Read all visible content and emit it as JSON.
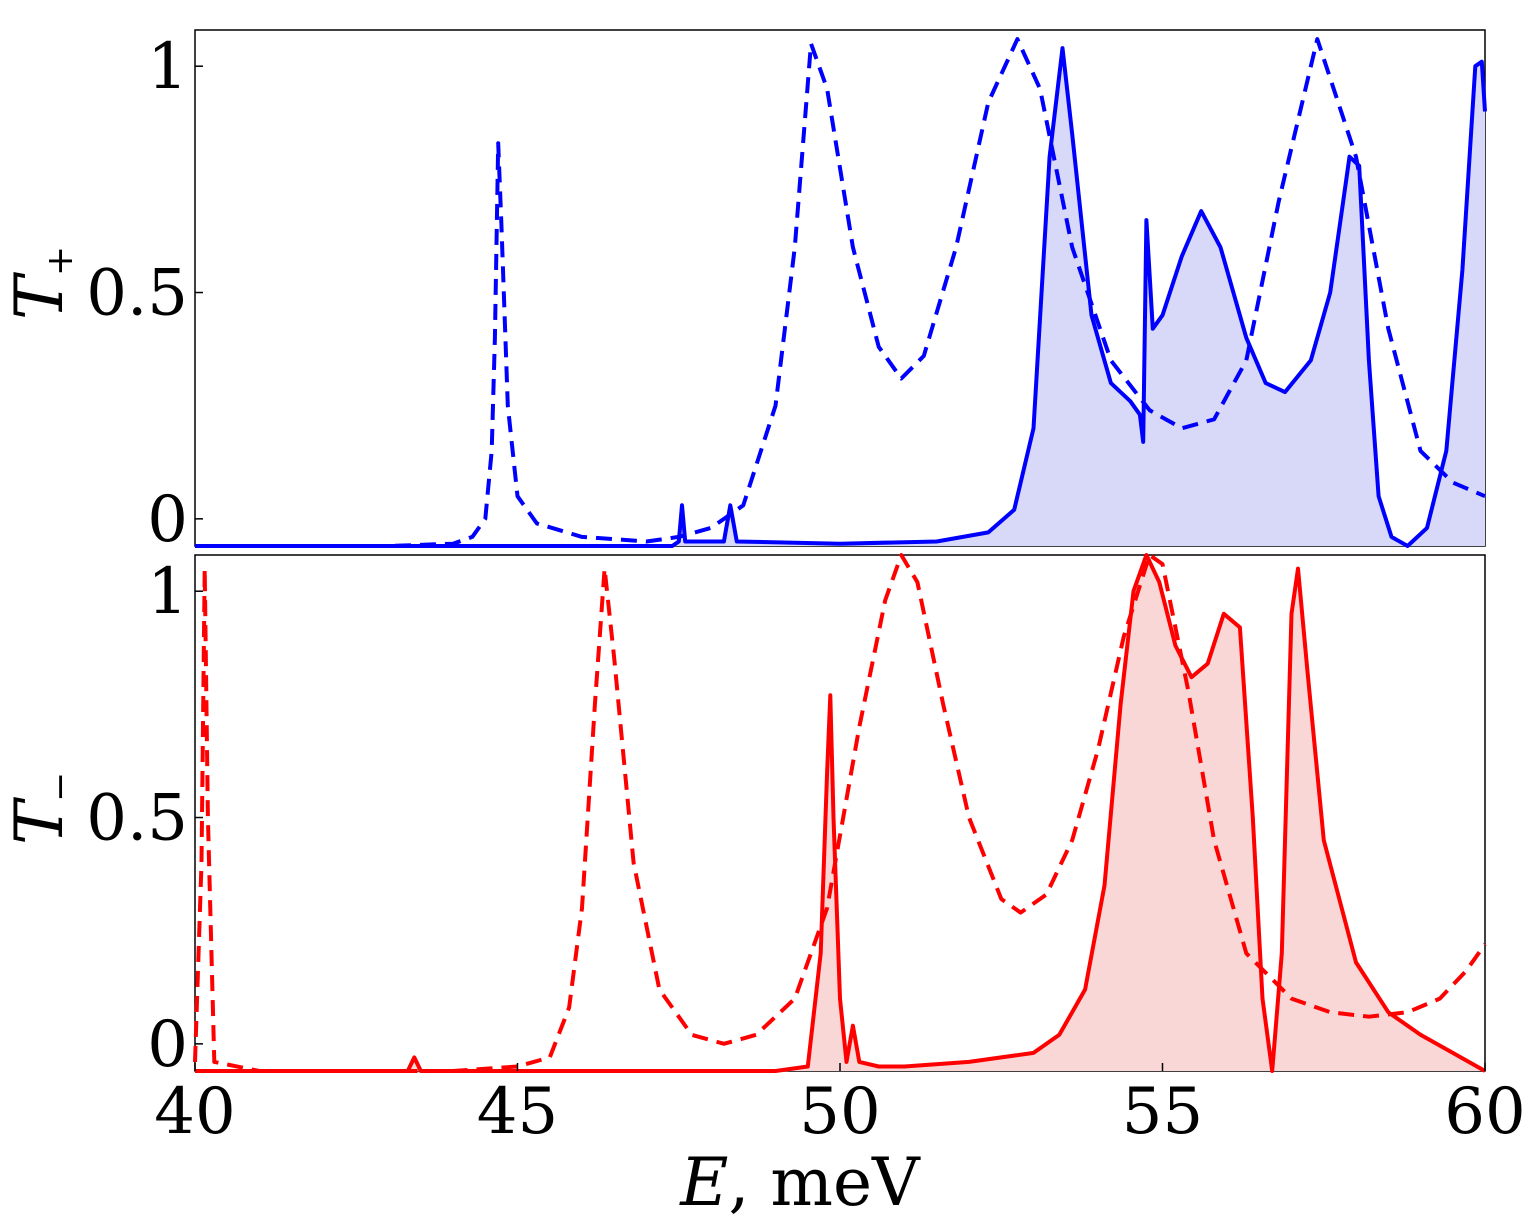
{
  "chart_data": [
    {
      "type": "line",
      "panel": "top",
      "color": "#0000ff",
      "fill_color": "#d8d8f8",
      "ylabel": "T",
      "ylabel_sub": "+",
      "xlim": [
        40,
        60
      ],
      "ylim": [
        -0.06,
        1.08
      ],
      "yticks": [
        0,
        0.5,
        1
      ],
      "ytick_labels": [
        "0",
        "0.5",
        "1"
      ],
      "series": [
        {
          "name": "dashed",
          "style": "dashed",
          "points": [
            [
              40,
              -0.06
            ],
            [
              43,
              -0.06
            ],
            [
              44,
              -0.055
            ],
            [
              44.3,
              -0.04
            ],
            [
              44.5,
              0.0
            ],
            [
              44.6,
              0.15
            ],
            [
              44.65,
              0.4
            ],
            [
              44.7,
              0.83
            ],
            [
              44.75,
              0.65
            ],
            [
              44.85,
              0.25
            ],
            [
              45.0,
              0.05
            ],
            [
              45.3,
              -0.01
            ],
            [
              46,
              -0.04
            ],
            [
              47,
              -0.05
            ],
            [
              47.5,
              -0.04
            ],
            [
              48,
              -0.02
            ],
            [
              48.5,
              0.03
            ],
            [
              49.0,
              0.25
            ],
            [
              49.3,
              0.6
            ],
            [
              49.55,
              1.05
            ],
            [
              49.8,
              0.95
            ],
            [
              50.2,
              0.6
            ],
            [
              50.6,
              0.38
            ],
            [
              50.95,
              0.31
            ],
            [
              51.3,
              0.36
            ],
            [
              51.8,
              0.6
            ],
            [
              52.3,
              0.92
            ],
            [
              52.75,
              1.06
            ],
            [
              53.1,
              0.95
            ],
            [
              53.6,
              0.6
            ],
            [
              54.2,
              0.35
            ],
            [
              54.8,
              0.24
            ],
            [
              55.3,
              0.2
            ],
            [
              55.8,
              0.22
            ],
            [
              56.3,
              0.35
            ],
            [
              56.8,
              0.7
            ],
            [
              57.4,
              1.06
            ],
            [
              58,
              0.8
            ],
            [
              58.5,
              0.42
            ],
            [
              59,
              0.15
            ],
            [
              59.5,
              0.08
            ],
            [
              60,
              0.05
            ]
          ]
        },
        {
          "name": "solid",
          "style": "solid",
          "filled": true,
          "points": [
            [
              40,
              -0.06
            ],
            [
              47.4,
              -0.06
            ],
            [
              47.5,
              -0.05
            ],
            [
              47.55,
              0.03
            ],
            [
              47.6,
              -0.05
            ],
            [
              48.2,
              -0.05
            ],
            [
              48.3,
              0.03
            ],
            [
              48.4,
              -0.05
            ],
            [
              50,
              -0.055
            ],
            [
              51.5,
              -0.05
            ],
            [
              52.3,
              -0.03
            ],
            [
              52.7,
              0.02
            ],
            [
              53.0,
              0.2
            ],
            [
              53.25,
              0.8
            ],
            [
              53.45,
              1.04
            ],
            [
              53.6,
              0.85
            ],
            [
              53.9,
              0.45
            ],
            [
              54.2,
              0.3
            ],
            [
              54.5,
              0.26
            ],
            [
              54.65,
              0.23
            ],
            [
              54.7,
              0.17
            ],
            [
              54.75,
              0.66
            ],
            [
              54.85,
              0.42
            ],
            [
              55.0,
              0.45
            ],
            [
              55.3,
              0.58
            ],
            [
              55.6,
              0.68
            ],
            [
              55.9,
              0.6
            ],
            [
              56.3,
              0.4
            ],
            [
              56.6,
              0.3
            ],
            [
              56.9,
              0.28
            ],
            [
              57.3,
              0.35
            ],
            [
              57.6,
              0.5
            ],
            [
              57.8,
              0.7
            ],
            [
              57.9,
              0.8
            ],
            [
              58.05,
              0.78
            ],
            [
              58.2,
              0.35
            ],
            [
              58.35,
              0.05
            ],
            [
              58.55,
              -0.04
            ],
            [
              58.8,
              -0.06
            ],
            [
              59.1,
              -0.02
            ],
            [
              59.4,
              0.15
            ],
            [
              59.65,
              0.55
            ],
            [
              59.85,
              1.0
            ],
            [
              59.95,
              1.01
            ],
            [
              60,
              0.9
            ]
          ]
        }
      ]
    },
    {
      "type": "line",
      "panel": "bottom",
      "color": "#ff0000",
      "fill_color": "#fad7d7",
      "ylabel": "T",
      "ylabel_sub": "−",
      "xlabel_italic": "E",
      "xlabel_rest": ", meV",
      "xlim": [
        40,
        60
      ],
      "ylim": [
        -0.06,
        1.08
      ],
      "xticks": [
        40,
        45,
        50,
        55,
        60
      ],
      "xtick_labels": [
        "40",
        "45",
        "50",
        "55",
        "60"
      ],
      "yticks": [
        0,
        0.5,
        1
      ],
      "ytick_labels": [
        "0",
        "0.5",
        "1"
      ],
      "series": [
        {
          "name": "dashed",
          "style": "dashed",
          "points": [
            [
              40.0,
              -0.04
            ],
            [
              40.1,
              0.4
            ],
            [
              40.15,
              1.05
            ],
            [
              40.2,
              0.5
            ],
            [
              40.3,
              -0.04
            ],
            [
              41,
              -0.06
            ],
            [
              44,
              -0.06
            ],
            [
              45,
              -0.05
            ],
            [
              45.5,
              -0.03
            ],
            [
              45.8,
              0.08
            ],
            [
              46.0,
              0.3
            ],
            [
              46.2,
              0.75
            ],
            [
              46.35,
              1.05
            ],
            [
              46.5,
              0.85
            ],
            [
              46.8,
              0.4
            ],
            [
              47.2,
              0.12
            ],
            [
              47.7,
              0.02
            ],
            [
              48.2,
              0.0
            ],
            [
              48.7,
              0.02
            ],
            [
              49.3,
              0.1
            ],
            [
              49.8,
              0.3
            ],
            [
              50.3,
              0.7
            ],
            [
              50.7,
              0.98
            ],
            [
              50.95,
              1.08
            ],
            [
              51.2,
              1.02
            ],
            [
              51.6,
              0.75
            ],
            [
              52.0,
              0.5
            ],
            [
              52.5,
              0.32
            ],
            [
              52.8,
              0.29
            ],
            [
              53.2,
              0.33
            ],
            [
              53.6,
              0.45
            ],
            [
              54.0,
              0.65
            ],
            [
              54.4,
              0.9
            ],
            [
              54.8,
              1.08
            ],
            [
              55.0,
              1.06
            ],
            [
              55.4,
              0.78
            ],
            [
              55.8,
              0.45
            ],
            [
              56.3,
              0.2
            ],
            [
              57.0,
              0.1
            ],
            [
              57.6,
              0.07
            ],
            [
              58.2,
              0.06
            ],
            [
              58.8,
              0.07
            ],
            [
              59.3,
              0.1
            ],
            [
              59.7,
              0.16
            ],
            [
              60,
              0.22
            ]
          ]
        },
        {
          "name": "solid",
          "style": "solid",
          "filled": true,
          "points": [
            [
              40,
              -0.06
            ],
            [
              43.3,
              -0.06
            ],
            [
              43.4,
              -0.03
            ],
            [
              43.5,
              -0.06
            ],
            [
              49.0,
              -0.06
            ],
            [
              49.5,
              -0.05
            ],
            [
              49.7,
              0.2
            ],
            [
              49.8,
              0.6
            ],
            [
              49.85,
              0.77
            ],
            [
              49.9,
              0.5
            ],
            [
              50.0,
              0.1
            ],
            [
              50.1,
              -0.04
            ],
            [
              50.2,
              0.04
            ],
            [
              50.3,
              -0.04
            ],
            [
              50.6,
              -0.05
            ],
            [
              51,
              -0.05
            ],
            [
              52,
              -0.04
            ],
            [
              53,
              -0.02
            ],
            [
              53.4,
              0.02
            ],
            [
              53.8,
              0.12
            ],
            [
              54.1,
              0.35
            ],
            [
              54.35,
              0.75
            ],
            [
              54.55,
              1.0
            ],
            [
              54.75,
              1.08
            ],
            [
              54.95,
              1.02
            ],
            [
              55.2,
              0.88
            ],
            [
              55.45,
              0.81
            ],
            [
              55.7,
              0.84
            ],
            [
              55.95,
              0.95
            ],
            [
              56.2,
              0.92
            ],
            [
              56.4,
              0.5
            ],
            [
              56.55,
              0.1
            ],
            [
              56.7,
              -0.06
            ],
            [
              56.85,
              0.2
            ],
            [
              57.0,
              0.95
            ],
            [
              57.1,
              1.05
            ],
            [
              57.25,
              0.82
            ],
            [
              57.5,
              0.45
            ],
            [
              58.0,
              0.18
            ],
            [
              58.5,
              0.07
            ],
            [
              59,
              0.02
            ],
            [
              59.5,
              -0.02
            ],
            [
              60,
              -0.06
            ]
          ]
        }
      ]
    }
  ]
}
